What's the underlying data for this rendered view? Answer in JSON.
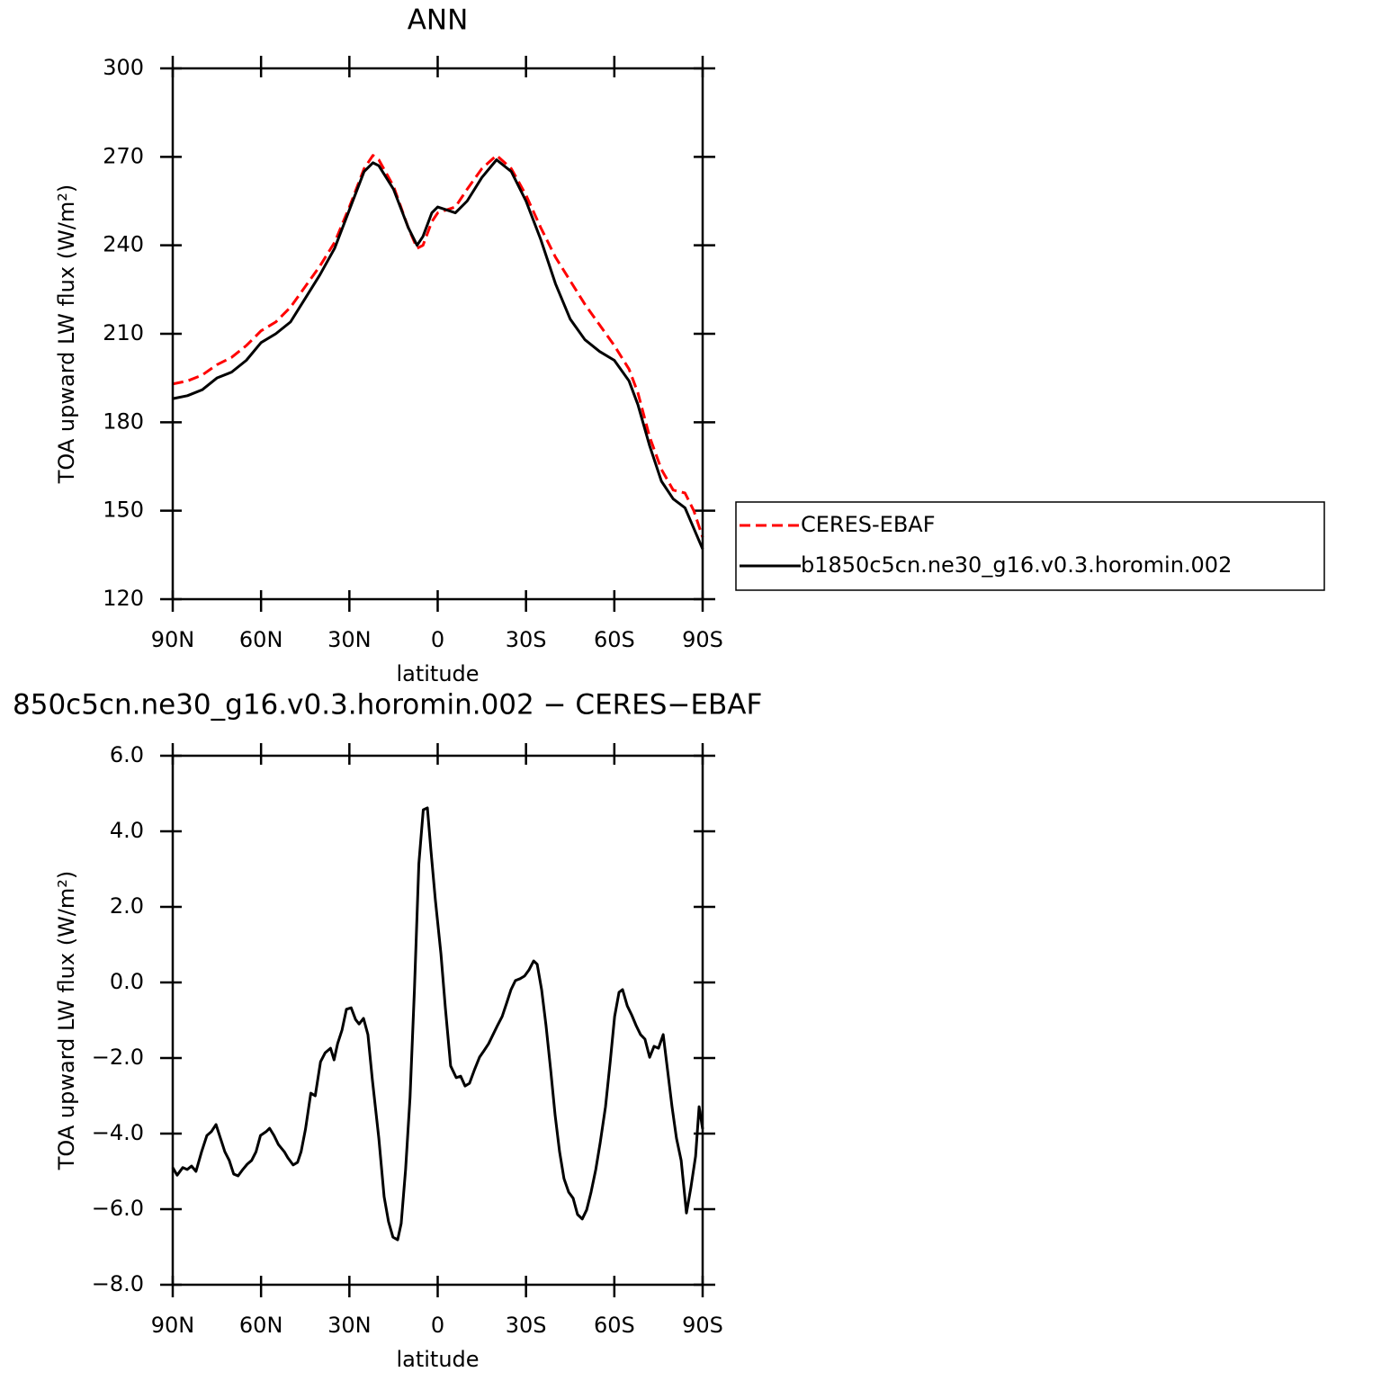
{
  "chart_data": [
    {
      "type": "line",
      "title": "ANN",
      "ylabel": "TOA upward LW flux (W/m²)",
      "xlabel": "latitude",
      "x": [
        90,
        85,
        80,
        75,
        70,
        65,
        60,
        55,
        50,
        45,
        40,
        35,
        30,
        25,
        22,
        20,
        15,
        10,
        7,
        5,
        2,
        0,
        -3,
        -6,
        -10,
        -15,
        -20,
        -25,
        -30,
        -35,
        -40,
        -45,
        -50,
        -55,
        -60,
        -65,
        -68,
        -72,
        -76,
        -80,
        -84,
        -87,
        -90
      ],
      "series": [
        {
          "name": "CERES-EBAF",
          "color": "#ff0000",
          "linestyle": "dashed",
          "values": [
            193,
            194,
            196,
            199.5,
            202,
            206,
            211,
            214,
            219,
            226,
            233,
            241,
            253,
            266,
            270.5,
            269,
            260,
            246,
            239,
            240,
            248,
            251,
            252,
            253,
            259,
            266,
            270.5,
            266,
            257,
            246,
            236,
            228,
            220,
            213,
            206,
            198,
            190,
            175,
            164,
            157,
            156,
            150,
            141
          ]
        },
        {
          "name": "b1850c5cn.ne30_g16.v0.3.horomin.002",
          "color": "#000000",
          "linestyle": "solid",
          "values": [
            188,
            189,
            191,
            195,
            197,
            201,
            207,
            210,
            214,
            222,
            230,
            239,
            252,
            265,
            268,
            267,
            259,
            246,
            240,
            243,
            251,
            253,
            252,
            251,
            255,
            263,
            269,
            265,
            255,
            242,
            227,
            215,
            208,
            204,
            201,
            194,
            186,
            172,
            160,
            154,
            151,
            144,
            137
          ]
        }
      ],
      "xlim": [
        90,
        -90
      ],
      "xticks": [
        {
          "value": 90,
          "label": "90N"
        },
        {
          "value": 60,
          "label": "60N"
        },
        {
          "value": 30,
          "label": "30N"
        },
        0,
        {
          "value": -30,
          "label": "30S"
        },
        {
          "value": -60,
          "label": "60S"
        },
        {
          "value": -90,
          "label": "90S"
        }
      ],
      "ylim": [
        120,
        300
      ],
      "yticks": [
        120,
        150,
        180,
        210,
        240,
        270,
        300
      ],
      "legend": "right"
    },
    {
      "type": "line",
      "title": "850c5cn.ne30_g16.v0.3.horomin.002 − CERES−EBAF",
      "ylabel": "TOA upward LW flux (W/m²)",
      "xlabel": "latitude",
      "x": [
        90.0,
        88.5,
        86.6,
        85.1,
        83.6,
        82.1,
        80.2,
        78.4,
        76.9,
        75.3,
        73.8,
        72.3,
        70.8,
        69.3,
        67.8,
        66.2,
        64.7,
        63.2,
        61.7,
        60.2,
        58.3,
        57.1,
        55.6,
        54.1,
        52.1,
        50.9,
        49.1,
        47.6,
        46.4,
        44.9,
        43.1,
        41.6,
        39.8,
        38.2,
        36.4,
        35.2,
        34.0,
        32.5,
        31.0,
        29.4,
        27.9,
        26.7,
        25.2,
        23.7,
        22.2,
        20.0,
        18.2,
        16.7,
        15.2,
        13.6,
        12.4,
        10.9,
        9.4,
        7.9,
        6.4,
        4.9,
        3.5,
        2.3,
        0.8,
        -1.1,
        -2.6,
        -4.4,
        -6.3,
        -7.8,
        -9.3,
        -10.8,
        -12.4,
        -14.2,
        -15.7,
        -17.3,
        -18.8,
        -20.3,
        -21.9,
        -23.4,
        -24.9,
        -26.4,
        -28.0,
        -29.5,
        -31.0,
        -32.6,
        -33.8,
        -35.3,
        -36.8,
        -38.4,
        -39.9,
        -41.4,
        -42.9,
        -44.5,
        -46.0,
        -47.5,
        -49.1,
        -50.6,
        -52.1,
        -53.7,
        -55.2,
        -57.0,
        -58.6,
        -60.1,
        -61.6,
        -62.8,
        -64.4,
        -65.9,
        -67.4,
        -68.9,
        -70.4,
        -72.0,
        -73.5,
        -75.0,
        -76.6,
        -78.1,
        -79.6,
        -81.1,
        -82.7,
        -84.5,
        -86.0,
        -87.6,
        -88.8,
        -90.0
      ],
      "values": [
        -4.9,
        -5.1,
        -4.9,
        -4.95,
        -4.86,
        -5.0,
        -4.48,
        -4.05,
        -3.95,
        -3.76,
        -4.12,
        -4.48,
        -4.71,
        -5.07,
        -5.12,
        -4.95,
        -4.81,
        -4.71,
        -4.48,
        -4.05,
        -3.95,
        -3.86,
        -4.05,
        -4.29,
        -4.48,
        -4.64,
        -4.83,
        -4.76,
        -4.48,
        -3.88,
        -2.93,
        -3.0,
        -2.1,
        -1.86,
        -1.74,
        -2.05,
        -1.62,
        -1.26,
        -0.71,
        -0.67,
        -0.98,
        -1.1,
        -0.95,
        -1.38,
        -2.57,
        -4.12,
        -5.67,
        -6.33,
        -6.74,
        -6.81,
        -6.38,
        -4.95,
        -3.05,
        -0.19,
        3.14,
        4.57,
        4.62,
        3.5,
        2.19,
        0.76,
        -0.67,
        -2.21,
        -2.52,
        -2.48,
        -2.74,
        -2.67,
        -2.33,
        -1.98,
        -1.81,
        -1.62,
        -1.38,
        -1.14,
        -0.9,
        -0.55,
        -0.19,
        0.05,
        0.1,
        0.17,
        0.33,
        0.57,
        0.48,
        -0.19,
        -1.14,
        -2.33,
        -3.52,
        -4.48,
        -5.19,
        -5.55,
        -5.71,
        -6.14,
        -6.26,
        -6.02,
        -5.55,
        -4.95,
        -4.24,
        -3.29,
        -2.1,
        -0.9,
        -0.26,
        -0.19,
        -0.62,
        -0.86,
        -1.14,
        -1.38,
        -1.5,
        -1.98,
        -1.69,
        -1.74,
        -1.38,
        -2.33,
        -3.29,
        -4.12,
        -4.71,
        -6.1,
        -5.43,
        -4.6,
        -3.29,
        -3.88
      ],
      "color": "#000000",
      "xlim": [
        90,
        -90
      ],
      "xticks": [
        {
          "value": 90,
          "label": "90N"
        },
        {
          "value": 60,
          "label": "60N"
        },
        {
          "value": 30,
          "label": "30N"
        },
        0,
        {
          "value": -30,
          "label": "30S"
        },
        {
          "value": -60,
          "label": "60S"
        },
        {
          "value": -90,
          "label": "90S"
        }
      ],
      "ylim": [
        -8,
        6
      ],
      "yticks": [
        {
          "value": -8,
          "label": "−8.0"
        },
        {
          "value": -6,
          "label": "−6.0"
        },
        {
          "value": -4,
          "label": "−4.0"
        },
        {
          "value": -2,
          "label": "−2.0"
        },
        {
          "value": 0,
          "label": "0.0"
        },
        {
          "value": 2,
          "label": "2.0"
        },
        {
          "value": 4,
          "label": "4.0"
        },
        {
          "value": 6,
          "label": "6.0"
        }
      ]
    }
  ]
}
